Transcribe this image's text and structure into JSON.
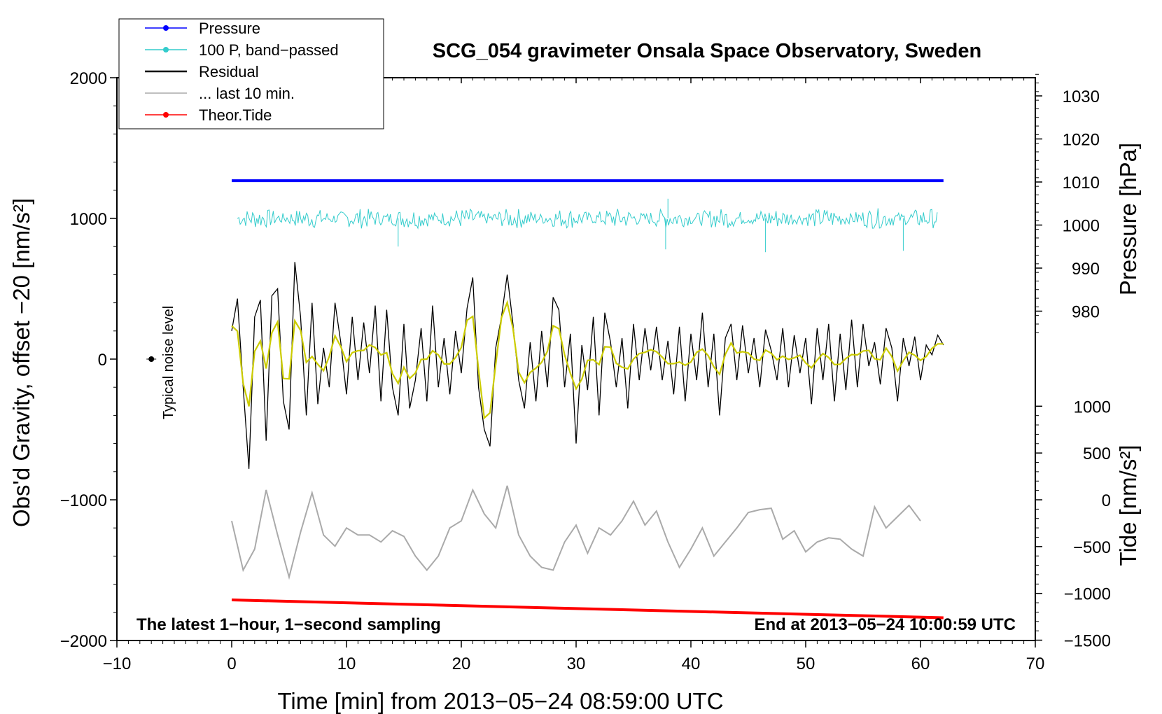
{
  "chart_data": {
    "type": "line",
    "title": "SCG_054 gravimeter Onsala Space Observatory, Sweden",
    "xlabel": "Time [min] from 2013−05−24 08:59:00 UTC",
    "ylabel": "Obs'd Gravity, offset −20 [nm/s²]",
    "ylabel_pressure": "Pressure [hPa]",
    "ylabel_tide": "Tide [nm/s²]",
    "xlim": [
      -10,
      70
    ],
    "ylim": [
      -2000,
      2000
    ],
    "pressure_lim": [
      970,
      1035
    ],
    "tide_lim": [
      -1500,
      1000
    ],
    "x_ticks": [
      -10,
      0,
      10,
      20,
      30,
      40,
      50,
      60,
      70
    ],
    "x_tick_labels": [
      "−10",
      "0",
      "10",
      "20",
      "30",
      "40",
      "50",
      "60",
      "70"
    ],
    "y_ticks": [
      -2000,
      -1000,
      0,
      1000,
      2000
    ],
    "y_tick_labels": [
      "−2000",
      "−1000",
      "0",
      "1000",
      "2000"
    ],
    "pressure_ticks": [
      980,
      990,
      1000,
      1010,
      1020,
      1030
    ],
    "pressure_tick_labels": [
      "980",
      "990",
      "1000",
      "1010",
      "1020",
      "1030"
    ],
    "tide_ticks": [
      -1500,
      -1000,
      -500,
      0,
      500,
      1000
    ],
    "tide_tick_labels": [
      "−1500",
      "−1000",
      "−500",
      "0",
      "500",
      "1000"
    ],
    "legend": [
      {
        "name": "Pressure",
        "color": "#0000ff",
        "marker": true
      },
      {
        "name": "100 P, band−passed",
        "color": "#33cccc",
        "marker": true
      },
      {
        "name": "Residual",
        "color": "#000000",
        "marker": false
      },
      {
        "name": "... last 10 min.",
        "color": "#aaaaaa",
        "marker": false
      },
      {
        "name": "Theor.Tide",
        "color": "#ff0000",
        "marker": true
      }
    ],
    "legend_position": "top-left",
    "series": {
      "pressure_hpa": {
        "name": "Pressure",
        "x": [
          0,
          62
        ],
        "values": [
          1010.3,
          1010.3
        ]
      },
      "tide": {
        "name": "Theor.Tide",
        "x": [
          0,
          62
        ],
        "values": [
          -1070,
          -1260
        ]
      },
      "pressure_bandpassed": {
        "name": "100 P, band−passed",
        "x_range": [
          0.5,
          61.5
        ],
        "mean": 1000,
        "amplitude": 60,
        "spikes": [
          {
            "x": 14.5,
            "y": 800
          },
          {
            "x": 37.8,
            "y": 780
          },
          {
            "x": 46.5,
            "y": 760
          },
          {
            "x": 58.5,
            "y": 770
          },
          {
            "x": 38.0,
            "y": 1140
          }
        ]
      },
      "residual": {
        "name": "Residual",
        "x": [
          0,
          0.5,
          1,
          1.5,
          2,
          2.5,
          3,
          3.5,
          4,
          4.5,
          5,
          5.5,
          6,
          6.5,
          7,
          7.5,
          8,
          8.5,
          9,
          9.5,
          10,
          10.5,
          11,
          11.5,
          12,
          12.5,
          13,
          13.5,
          14,
          14.5,
          15,
          15.5,
          16,
          16.5,
          17,
          17.5,
          18,
          18.5,
          19,
          19.5,
          20,
          20.5,
          21,
          21.5,
          22,
          22.5,
          23,
          23.5,
          24,
          24.5,
          25,
          25.5,
          26,
          26.5,
          27,
          27.5,
          28,
          28.5,
          29,
          29.5,
          30,
          30.5,
          31,
          31.5,
          32,
          32.5,
          33,
          33.5,
          34,
          34.5,
          35,
          35.5,
          36,
          36.5,
          37,
          37.5,
          38,
          38.5,
          39,
          39.5,
          40,
          40.5,
          41,
          41.5,
          42,
          42.5,
          43,
          43.5,
          44,
          44.5,
          45,
          45.5,
          46,
          46.5,
          47,
          47.5,
          48,
          48.5,
          49,
          49.5,
          50,
          50.5,
          51,
          51.5,
          52,
          52.5,
          53,
          53.5,
          54,
          54.5,
          55,
          55.5,
          56,
          56.5,
          57,
          57.5,
          58,
          58.5,
          59,
          59.5,
          60,
          60.5,
          61,
          61.5,
          62
        ],
        "values": [
          200,
          430,
          -200,
          -780,
          300,
          420,
          -580,
          450,
          500,
          -300,
          -500,
          690,
          300,
          -400,
          400,
          -320,
          80,
          -200,
          400,
          120,
          -250,
          300,
          -150,
          260,
          -100,
          380,
          -300,
          350,
          -200,
          -400,
          250,
          -350,
          -150,
          220,
          -300,
          380,
          -200,
          150,
          -250,
          200,
          -100,
          360,
          580,
          -200,
          -500,
          -620,
          80,
          300,
          600,
          250,
          -150,
          -350,
          120,
          -300,
          200,
          -200,
          440,
          350,
          -200,
          180,
          -600,
          100,
          -220,
          300,
          -400,
          330,
          120,
          -200,
          150,
          -350,
          250,
          -150,
          220,
          -80,
          230,
          -150,
          130,
          -250,
          230,
          -300,
          180,
          -150,
          330,
          -200,
          180,
          -400,
          150,
          250,
          -150,
          240,
          -100,
          150,
          -200,
          210,
          60,
          -150,
          220,
          -200,
          170,
          -100,
          150,
          -320,
          220,
          -150,
          250,
          -300,
          180,
          -220,
          280,
          -200,
          250,
          -50,
          120,
          -180,
          220,
          80,
          -300,
          150,
          -50,
          160,
          -150,
          100,
          30,
          170,
          100
        ]
      },
      "last_10_min": {
        "name": "... last 10 min.",
        "x": [
          0,
          1,
          2,
          3,
          4,
          5,
          6,
          7,
          8,
          9,
          10,
          11,
          12,
          13,
          14,
          15,
          16,
          17,
          18,
          19,
          20,
          21,
          22,
          23,
          24,
          25,
          26,
          27,
          28,
          29,
          30,
          31,
          32,
          33,
          34,
          35,
          36,
          37,
          38,
          39,
          40,
          41,
          42,
          43,
          44,
          45,
          46,
          47,
          48,
          49,
          50,
          51,
          52,
          53,
          54,
          55,
          56,
          57,
          58,
          59,
          60
        ],
        "values": [
          -1150,
          -1500,
          -1350,
          -930,
          -1250,
          -1550,
          -1230,
          -950,
          -1250,
          -1330,
          -1200,
          -1250,
          -1250,
          -1300,
          -1220,
          -1260,
          -1400,
          -1500,
          -1400,
          -1200,
          -1150,
          -930,
          -1100,
          -1200,
          -900,
          -1250,
          -1400,
          -1480,
          -1500,
          -1300,
          -1180,
          -1380,
          -1200,
          -1250,
          -1150,
          -1010,
          -1180,
          -1080,
          -1300,
          -1480,
          -1350,
          -1200,
          -1400,
          -1300,
          -1200,
          -1090,
          -1070,
          -1060,
          -1280,
          -1220,
          -1370,
          -1300,
          -1270,
          -1280,
          -1350,
          -1400,
          -1050,
          -1200,
          -1120,
          -1040,
          -1150
        ]
      }
    },
    "annotations": {
      "noise_label": "Typical noise level",
      "left_caption": "The latest 1−hour, 1−second sampling",
      "right_caption": "End at 2013−05−24 10:00:59 UTC",
      "noise_point": {
        "x": -7,
        "y": 0
      }
    }
  }
}
